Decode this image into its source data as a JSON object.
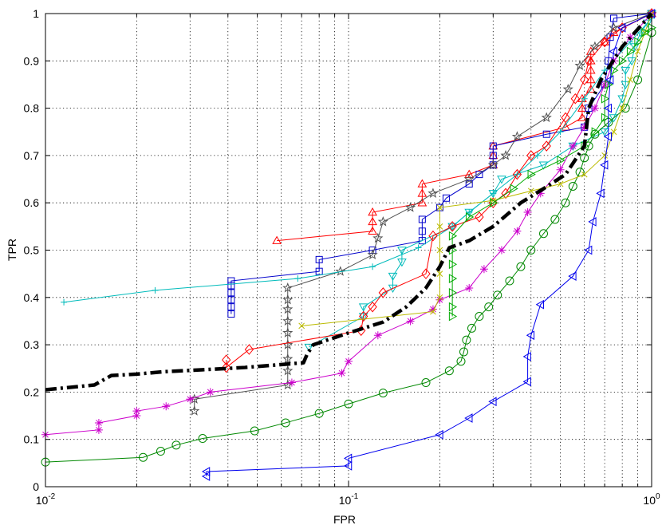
{
  "chart_data": {
    "type": "line",
    "title": "",
    "xlabel": "FPR",
    "ylabel": "TPR",
    "xscale": "log",
    "xlim": [
      0.01,
      1
    ],
    "ylim": [
      0,
      1
    ],
    "grid": true,
    "x_ticks": [
      {
        "value": 0.01,
        "base": "10",
        "exp": "-2"
      },
      {
        "value": 0.1,
        "base": "10",
        "exp": "-1"
      },
      {
        "value": 1,
        "base": "10",
        "exp": "0"
      }
    ],
    "y_ticks": [
      "0",
      "0.1",
      "0.2",
      "0.3",
      "0.4",
      "0.5",
      "0.6",
      "0.7",
      "0.8",
      "0.9",
      "1"
    ],
    "series": [
      {
        "color": "#000000",
        "marker": "none",
        "style": "dashdot-thick",
        "points": [
          [
            0.01,
            0.205
          ],
          [
            0.0145,
            0.215
          ],
          [
            0.0165,
            0.235
          ],
          [
            0.02,
            0.238
          ],
          [
            0.0245,
            0.243
          ],
          [
            0.04,
            0.25
          ],
          [
            0.0455,
            0.252
          ],
          [
            0.071,
            0.262
          ],
          [
            0.073,
            0.28
          ],
          [
            0.0765,
            0.3
          ],
          [
            0.1,
            0.325
          ],
          [
            0.13,
            0.348
          ],
          [
            0.155,
            0.38
          ],
          [
            0.18,
            0.42
          ],
          [
            0.2,
            0.465
          ],
          [
            0.215,
            0.505
          ],
          [
            0.25,
            0.52
          ],
          [
            0.3,
            0.55
          ],
          [
            0.37,
            0.6
          ],
          [
            0.44,
            0.63
          ],
          [
            0.52,
            0.66
          ],
          [
            0.6,
            0.72
          ],
          [
            0.62,
            0.8
          ],
          [
            0.68,
            0.86
          ],
          [
            0.8,
            0.93
          ],
          [
            1.0,
            1.0
          ]
        ]
      },
      {
        "color": "#ff0000",
        "marker": "triangle-up",
        "points": [
          [
            0.058,
            0.52
          ],
          [
            0.12,
            0.54
          ],
          [
            0.12,
            0.56
          ],
          [
            0.12,
            0.58
          ],
          [
            0.175,
            0.6
          ],
          [
            0.175,
            0.62
          ],
          [
            0.175,
            0.64
          ],
          [
            0.25,
            0.66
          ],
          [
            0.3,
            0.68
          ],
          [
            0.3,
            0.7
          ],
          [
            0.3,
            0.72
          ],
          [
            0.52,
            0.76
          ],
          [
            0.59,
            0.78
          ],
          [
            0.59,
            0.8
          ],
          [
            0.59,
            0.82
          ],
          [
            0.63,
            0.84
          ],
          [
            0.63,
            0.86
          ],
          [
            0.63,
            0.88
          ],
          [
            0.63,
            0.9
          ],
          [
            0.63,
            0.92
          ],
          [
            0.7,
            0.94
          ],
          [
            0.75,
            0.96
          ],
          [
            1.0,
            1.0
          ]
        ]
      },
      {
        "color": "#0000cc",
        "marker": "square",
        "points": [
          [
            0.041,
            0.365
          ],
          [
            0.041,
            0.38
          ],
          [
            0.041,
            0.395
          ],
          [
            0.041,
            0.41
          ],
          [
            0.041,
            0.425
          ],
          [
            0.041,
            0.435
          ],
          [
            0.08,
            0.455
          ],
          [
            0.08,
            0.48
          ],
          [
            0.12,
            0.5
          ],
          [
            0.175,
            0.52
          ],
          [
            0.175,
            0.54
          ],
          [
            0.175,
            0.565
          ],
          [
            0.2,
            0.59
          ],
          [
            0.21,
            0.61
          ],
          [
            0.25,
            0.64
          ],
          [
            0.27,
            0.66
          ],
          [
            0.3,
            0.68
          ],
          [
            0.3,
            0.7
          ],
          [
            0.3,
            0.72
          ],
          [
            0.45,
            0.745
          ],
          [
            0.6,
            0.76
          ],
          [
            0.62,
            0.8
          ],
          [
            0.7,
            0.85
          ],
          [
            0.72,
            0.9
          ],
          [
            0.73,
            0.95
          ],
          [
            0.75,
            0.99
          ],
          [
            1.0,
            1.0
          ]
        ]
      },
      {
        "color": "#505050",
        "marker": "star",
        "points": [
          [
            0.031,
            0.16
          ],
          [
            0.031,
            0.185
          ],
          [
            0.063,
            0.215
          ],
          [
            0.063,
            0.245
          ],
          [
            0.063,
            0.27
          ],
          [
            0.063,
            0.3
          ],
          [
            0.063,
            0.325
          ],
          [
            0.063,
            0.35
          ],
          [
            0.063,
            0.375
          ],
          [
            0.063,
            0.395
          ],
          [
            0.063,
            0.42
          ],
          [
            0.094,
            0.455
          ],
          [
            0.12,
            0.49
          ],
          [
            0.125,
            0.525
          ],
          [
            0.13,
            0.56
          ],
          [
            0.16,
            0.59
          ],
          [
            0.19,
            0.62
          ],
          [
            0.25,
            0.65
          ],
          [
            0.3,
            0.68
          ],
          [
            0.33,
            0.7
          ],
          [
            0.36,
            0.74
          ],
          [
            0.45,
            0.78
          ],
          [
            0.53,
            0.84
          ],
          [
            0.58,
            0.89
          ],
          [
            0.65,
            0.93
          ],
          [
            0.75,
            0.97
          ],
          [
            1.0,
            1.0
          ]
        ]
      },
      {
        "color": "#00bbbb",
        "marker": "plus",
        "points": [
          [
            0.0115,
            0.39
          ],
          [
            0.023,
            0.415
          ],
          [
            0.068,
            0.44
          ],
          [
            0.12,
            0.465
          ],
          [
            0.17,
            0.505
          ],
          [
            0.22,
            0.55
          ],
          [
            0.25,
            0.58
          ],
          [
            0.3,
            0.62
          ],
          [
            0.36,
            0.66
          ],
          [
            0.42,
            0.7
          ],
          [
            0.5,
            0.75
          ],
          [
            0.6,
            0.82
          ],
          [
            0.7,
            0.88
          ],
          [
            0.85,
            0.94
          ],
          [
            1.0,
            0.99
          ]
        ]
      },
      {
        "color": "#00bbbb",
        "marker": "triangle-down",
        "points": [
          [
            0.074,
            0.295
          ],
          [
            0.112,
            0.36
          ],
          [
            0.112,
            0.38
          ],
          [
            0.14,
            0.42
          ],
          [
            0.14,
            0.445
          ],
          [
            0.15,
            0.475
          ],
          [
            0.15,
            0.5
          ],
          [
            0.22,
            0.55
          ],
          [
            0.25,
            0.58
          ],
          [
            0.3,
            0.62
          ],
          [
            0.32,
            0.65
          ],
          [
            0.44,
            0.68
          ],
          [
            0.55,
            0.72
          ],
          [
            0.7,
            0.75
          ],
          [
            0.75,
            0.78
          ],
          [
            0.8,
            0.82
          ],
          [
            0.82,
            0.85
          ],
          [
            0.82,
            0.88
          ],
          [
            0.86,
            0.9
          ],
          [
            0.88,
            0.93
          ],
          [
            0.92,
            0.96
          ],
          [
            0.97,
            0.98
          ],
          [
            1.0,
            1.0
          ]
        ]
      },
      {
        "color": "#ff0000",
        "marker": "diamond",
        "points": [
          [
            0.0395,
            0.268
          ],
          [
            0.0395,
            0.252
          ],
          [
            0.047,
            0.29
          ],
          [
            0.11,
            0.33
          ],
          [
            0.112,
            0.36
          ],
          [
            0.12,
            0.38
          ],
          [
            0.13,
            0.41
          ],
          [
            0.18,
            0.45
          ],
          [
            0.19,
            0.53
          ],
          [
            0.22,
            0.55
          ],
          [
            0.27,
            0.57
          ],
          [
            0.3,
            0.6
          ],
          [
            0.33,
            0.62
          ],
          [
            0.36,
            0.66
          ],
          [
            0.4,
            0.7
          ],
          [
            0.45,
            0.72
          ],
          [
            0.52,
            0.78
          ],
          [
            0.56,
            0.82
          ],
          [
            0.6,
            0.86
          ],
          [
            0.62,
            0.9
          ],
          [
            0.7,
            0.94
          ],
          [
            0.8,
            0.97
          ],
          [
            1.0,
            1.0
          ]
        ]
      },
      {
        "color": "#cc00cc",
        "marker": "asterisk",
        "points": [
          [
            0.01,
            0.11
          ],
          [
            0.015,
            0.12
          ],
          [
            0.015,
            0.135
          ],
          [
            0.02,
            0.15
          ],
          [
            0.02,
            0.16
          ],
          [
            0.025,
            0.17
          ],
          [
            0.03,
            0.185
          ],
          [
            0.035,
            0.2
          ],
          [
            0.065,
            0.22
          ],
          [
            0.095,
            0.24
          ],
          [
            0.1,
            0.265
          ],
          [
            0.125,
            0.32
          ],
          [
            0.16,
            0.35
          ],
          [
            0.19,
            0.375
          ],
          [
            0.2,
            0.395
          ],
          [
            0.25,
            0.42
          ],
          [
            0.28,
            0.46
          ],
          [
            0.32,
            0.5
          ],
          [
            0.36,
            0.54
          ],
          [
            0.39,
            0.58
          ],
          [
            0.43,
            0.62
          ],
          [
            0.5,
            0.67
          ],
          [
            0.55,
            0.72
          ],
          [
            0.6,
            0.76
          ],
          [
            0.65,
            0.8
          ],
          [
            0.7,
            0.85
          ],
          [
            0.75,
            0.9
          ],
          [
            0.85,
            0.95
          ],
          [
            1.0,
            1.0
          ]
        ]
      },
      {
        "color": "#008800",
        "marker": "circle",
        "points": [
          [
            0.01,
            0.052
          ],
          [
            0.021,
            0.062
          ],
          [
            0.024,
            0.075
          ],
          [
            0.027,
            0.088
          ],
          [
            0.033,
            0.102
          ],
          [
            0.049,
            0.118
          ],
          [
            0.062,
            0.135
          ],
          [
            0.08,
            0.155
          ],
          [
            0.1,
            0.175
          ],
          [
            0.13,
            0.198
          ],
          [
            0.18,
            0.22
          ],
          [
            0.215,
            0.245
          ],
          [
            0.235,
            0.265
          ],
          [
            0.24,
            0.285
          ],
          [
            0.245,
            0.31
          ],
          [
            0.255,
            0.335
          ],
          [
            0.27,
            0.36
          ],
          [
            0.29,
            0.38
          ],
          [
            0.31,
            0.405
          ],
          [
            0.34,
            0.435
          ],
          [
            0.37,
            0.465
          ],
          [
            0.4,
            0.5
          ],
          [
            0.44,
            0.535
          ],
          [
            0.48,
            0.565
          ],
          [
            0.52,
            0.6
          ],
          [
            0.55,
            0.635
          ],
          [
            0.58,
            0.665
          ],
          [
            0.6,
            0.695
          ],
          [
            0.62,
            0.72
          ],
          [
            0.65,
            0.745
          ],
          [
            0.72,
            0.77
          ],
          [
            0.82,
            0.8
          ],
          [
            0.9,
            0.86
          ],
          [
            1.0,
            0.96
          ]
        ]
      },
      {
        "color": "#bbbb00",
        "marker": "x",
        "points": [
          [
            0.07,
            0.34
          ],
          [
            0.19,
            0.37
          ],
          [
            0.2,
            0.4
          ],
          [
            0.2,
            0.45
          ],
          [
            0.2,
            0.5
          ],
          [
            0.2,
            0.55
          ],
          [
            0.2,
            0.59
          ],
          [
            0.3,
            0.605
          ],
          [
            0.4,
            0.625
          ],
          [
            0.5,
            0.64
          ],
          [
            0.6,
            0.66
          ],
          [
            0.7,
            0.7
          ],
          [
            0.75,
            0.75
          ],
          [
            0.8,
            0.8
          ],
          [
            0.85,
            0.86
          ],
          [
            0.9,
            0.92
          ],
          [
            0.95,
            0.96
          ],
          [
            1.0,
            1.0
          ]
        ]
      },
      {
        "color": "#00aa00",
        "marker": "triangle-right",
        "points": [
          [
            0.22,
            0.36
          ],
          [
            0.22,
            0.38
          ],
          [
            0.22,
            0.41
          ],
          [
            0.22,
            0.44
          ],
          [
            0.22,
            0.47
          ],
          [
            0.22,
            0.5
          ],
          [
            0.22,
            0.53
          ],
          [
            0.25,
            0.57
          ],
          [
            0.3,
            0.6
          ],
          [
            0.35,
            0.63
          ],
          [
            0.4,
            0.66
          ],
          [
            0.5,
            0.69
          ],
          [
            0.6,
            0.72
          ],
          [
            0.65,
            0.75
          ],
          [
            0.7,
            0.78
          ],
          [
            0.7,
            0.82
          ],
          [
            0.72,
            0.85
          ],
          [
            0.75,
            0.88
          ],
          [
            0.8,
            0.9
          ],
          [
            0.85,
            0.92
          ],
          [
            0.9,
            0.94
          ],
          [
            0.95,
            0.96
          ],
          [
            1.0,
            0.97
          ]
        ]
      },
      {
        "color": "#0000ee",
        "marker": "triangle-left",
        "points": [
          [
            0.034,
            0.022
          ],
          [
            0.034,
            0.032
          ],
          [
            0.1,
            0.044
          ],
          [
            0.1,
            0.06
          ],
          [
            0.2,
            0.11
          ],
          [
            0.25,
            0.145
          ],
          [
            0.3,
            0.18
          ],
          [
            0.39,
            0.222
          ],
          [
            0.39,
            0.275
          ],
          [
            0.4,
            0.32
          ],
          [
            0.43,
            0.385
          ],
          [
            0.55,
            0.445
          ],
          [
            0.62,
            0.5
          ],
          [
            0.64,
            0.56
          ],
          [
            0.68,
            0.62
          ],
          [
            0.7,
            0.68
          ],
          [
            0.72,
            0.74
          ],
          [
            0.72,
            0.8
          ],
          [
            0.73,
            0.86
          ],
          [
            0.75,
            0.92
          ],
          [
            0.8,
            0.97
          ],
          [
            1.0,
            1.0
          ]
        ]
      }
    ]
  }
}
